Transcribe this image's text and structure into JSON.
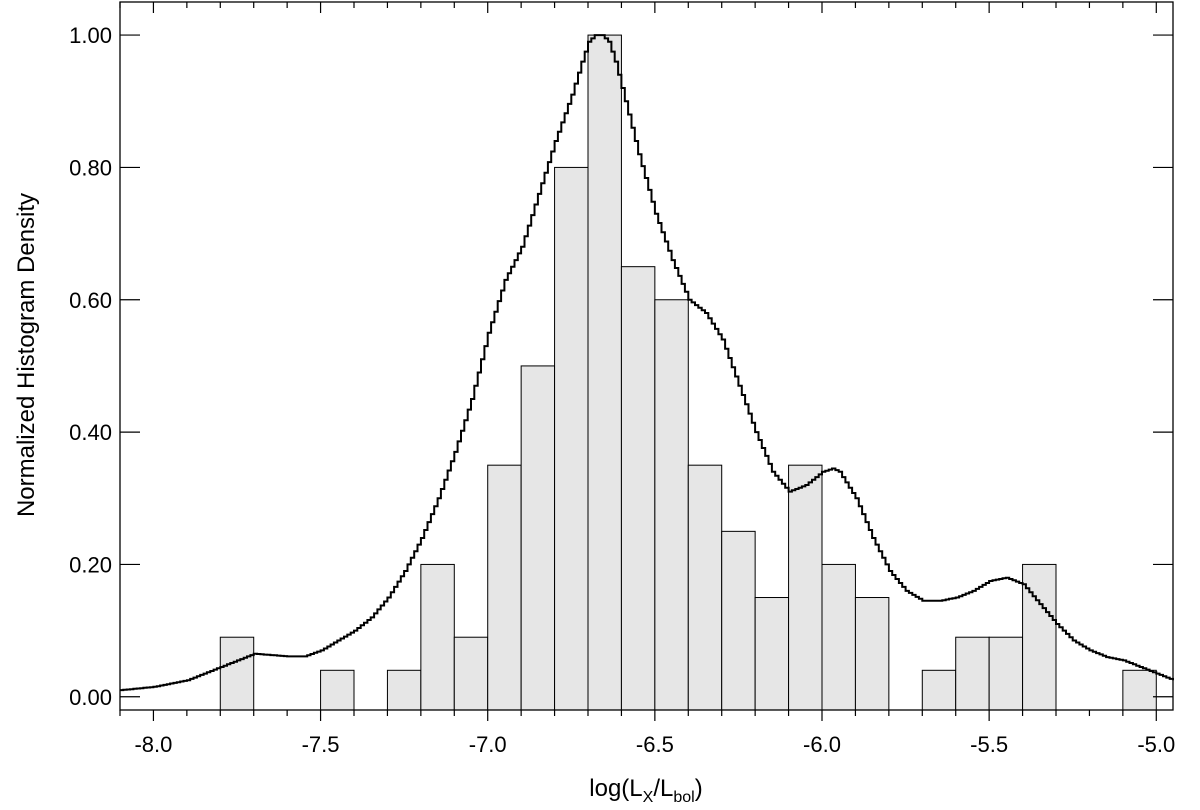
{
  "chart_data": {
    "type": "bar",
    "xlabel": "log(L",
    "xlabel_sub1": "X",
    "xlabel_mid": "/L",
    "xlabel_sub2": "bol",
    "xlabel_end": ")",
    "ylabel": "Normalized Histogram Density",
    "xlim": [
      -8.1,
      -4.95
    ],
    "ylim": [
      -0.02,
      1.05
    ],
    "xticks": [
      -8.0,
      -7.5,
      -7.0,
      -6.5,
      -6.0,
      -5.5,
      -5.0
    ],
    "xtick_labels": [
      "-8.0",
      "-7.5",
      "-7.0",
      "-6.5",
      "-6.0",
      "-5.5",
      "-5.0"
    ],
    "x_minor_step": 0.1,
    "yticks": [
      0.0,
      0.2,
      0.4,
      0.6,
      0.8,
      1.0
    ],
    "ytick_labels": [
      "0.00",
      "0.20",
      "0.40",
      "0.60",
      "0.80",
      "1.00"
    ],
    "bar_color": "#e6e6e6",
    "line_color": "#000000",
    "bins": {
      "edges": [
        -7.8,
        -7.7,
        -7.5,
        -7.4,
        -7.3,
        -7.2,
        -7.1,
        -7.0,
        -6.9,
        -6.8,
        -6.7,
        -6.6,
        -6.5,
        -6.4,
        -6.3,
        -6.2,
        -6.1,
        -6.0,
        -5.9,
        -5.8,
        -5.7,
        -5.6,
        -5.5,
        -5.4,
        -5.3,
        -5.1,
        -5.0
      ],
      "bars": [
        {
          "x0": -7.8,
          "x1": -7.7,
          "value": 0.09
        },
        {
          "x0": -7.5,
          "x1": -7.4,
          "value": 0.04
        },
        {
          "x0": -7.3,
          "x1": -7.2,
          "value": 0.04
        },
        {
          "x0": -7.2,
          "x1": -7.1,
          "value": 0.2
        },
        {
          "x0": -7.1,
          "x1": -7.0,
          "value": 0.09
        },
        {
          "x0": -7.0,
          "x1": -6.9,
          "value": 0.35
        },
        {
          "x0": -6.9,
          "x1": -6.8,
          "value": 0.5
        },
        {
          "x0": -6.8,
          "x1": -6.7,
          "value": 0.8
        },
        {
          "x0": -6.7,
          "x1": -6.6,
          "value": 1.0
        },
        {
          "x0": -6.6,
          "x1": -6.5,
          "value": 0.65
        },
        {
          "x0": -6.5,
          "x1": -6.4,
          "value": 0.6
        },
        {
          "x0": -6.4,
          "x1": -6.3,
          "value": 0.35
        },
        {
          "x0": -6.3,
          "x1": -6.2,
          "value": 0.25
        },
        {
          "x0": -6.2,
          "x1": -6.1,
          "value": 0.15
        },
        {
          "x0": -6.1,
          "x1": -6.0,
          "value": 0.35
        },
        {
          "x0": -6.0,
          "x1": -5.9,
          "value": 0.2
        },
        {
          "x0": -5.9,
          "x1": -5.8,
          "value": 0.15
        },
        {
          "x0": -5.7,
          "x1": -5.6,
          "value": 0.04
        },
        {
          "x0": -5.6,
          "x1": -5.5,
          "value": 0.09
        },
        {
          "x0": -5.5,
          "x1": -5.4,
          "value": 0.09
        },
        {
          "x0": -5.4,
          "x1": -5.3,
          "value": 0.2
        },
        {
          "x0": -5.1,
          "x1": -5.0,
          "value": 0.04
        }
      ]
    },
    "density_curve": {
      "x": [
        -8.1,
        -8.0,
        -7.9,
        -7.85,
        -7.8,
        -7.75,
        -7.7,
        -7.65,
        -7.6,
        -7.55,
        -7.5,
        -7.45,
        -7.4,
        -7.35,
        -7.3,
        -7.25,
        -7.2,
        -7.15,
        -7.1,
        -7.05,
        -7.0,
        -6.95,
        -6.9,
        -6.85,
        -6.8,
        -6.75,
        -6.72,
        -6.7,
        -6.68,
        -6.66,
        -6.64,
        -6.62,
        -6.6,
        -6.55,
        -6.5,
        -6.45,
        -6.4,
        -6.35,
        -6.3,
        -6.25,
        -6.2,
        -6.15,
        -6.1,
        -6.05,
        -6.0,
        -5.97,
        -5.95,
        -5.9,
        -5.85,
        -5.8,
        -5.75,
        -5.7,
        -5.65,
        -5.6,
        -5.55,
        -5.5,
        -5.45,
        -5.4,
        -5.35,
        -5.3,
        -5.25,
        -5.2,
        -5.15,
        -5.1,
        -5.05,
        -5.0,
        -4.95
      ],
      "y": [
        0.01,
        0.015,
        0.025,
        0.035,
        0.045,
        0.055,
        0.065,
        0.063,
        0.061,
        0.061,
        0.07,
        0.085,
        0.1,
        0.12,
        0.15,
        0.19,
        0.24,
        0.3,
        0.37,
        0.45,
        0.55,
        0.63,
        0.68,
        0.76,
        0.84,
        0.91,
        0.96,
        0.99,
        1.0,
        1.0,
        0.99,
        0.96,
        0.92,
        0.82,
        0.73,
        0.66,
        0.6,
        0.58,
        0.54,
        0.47,
        0.4,
        0.34,
        0.31,
        0.32,
        0.34,
        0.345,
        0.34,
        0.3,
        0.24,
        0.19,
        0.16,
        0.145,
        0.145,
        0.15,
        0.16,
        0.175,
        0.18,
        0.17,
        0.14,
        0.11,
        0.085,
        0.07,
        0.06,
        0.055,
        0.045,
        0.035,
        0.025
      ]
    }
  }
}
